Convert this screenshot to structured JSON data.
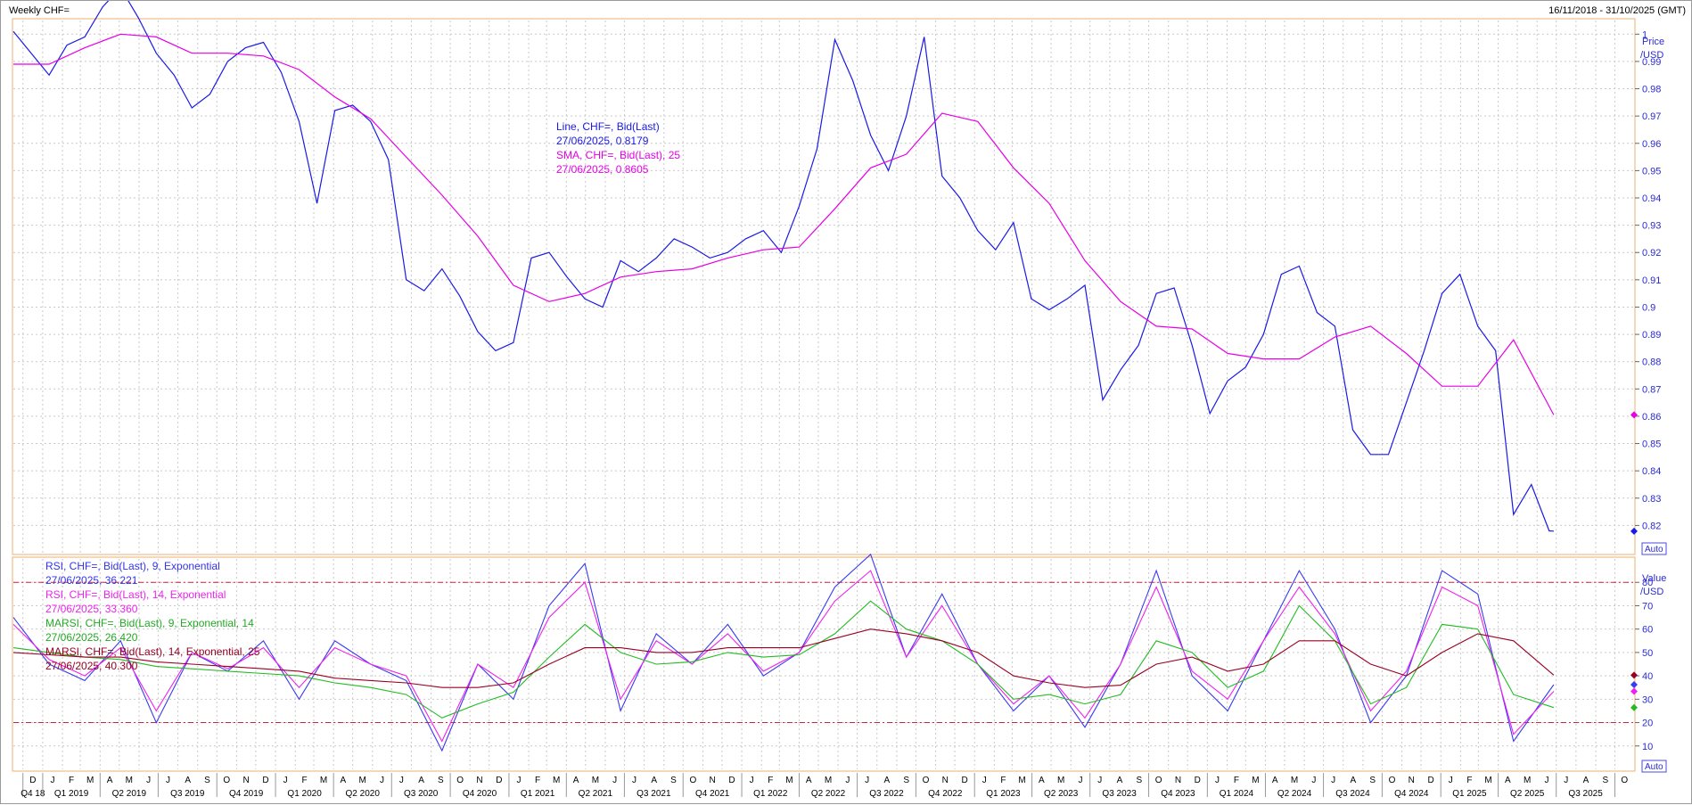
{
  "window": {
    "title": "Weekly CHF=",
    "date_range": "16/11/2018 - 31/10/2025 (GMT)"
  },
  "price_axis": {
    "unit_line1": "Price",
    "unit_line2": "/USD",
    "auto_label": "Auto"
  },
  "value_axis": {
    "unit_line1": "Value",
    "unit_line2": "/USD",
    "auto_label": "Auto"
  },
  "price_legend": [
    {
      "label": "Line, CHF=, Bid(Last)",
      "value": "27/06/2025, 0.8179",
      "color": "#1a1ae6"
    },
    {
      "label": "SMA, CHF=, Bid(Last),  25",
      "value": "27/06/2025, 0.8605",
      "color": "#e600e6"
    }
  ],
  "indicator_legend": [
    {
      "label": "RSI, CHF=, Bid(Last),  9, Exponential",
      "value": "27/06/2025, 36.221",
      "color": "#3333ee"
    },
    {
      "label": "RSI, CHF=, Bid(Last),  14, Exponential",
      "value": "27/06/2025, 33.360",
      "color": "#ee22ee"
    },
    {
      "label": "MARSI, CHF=, Bid(Last),  9, Exponential, 14",
      "value": "27/06/2025, 26.420",
      "color": "#22bb22"
    },
    {
      "label": "MARSI, CHF=, Bid(Last),  14, Exponential, 25",
      "value": "27/06/2025, 40.300",
      "color": "#990022"
    }
  ],
  "colors": {
    "price_line": "#1a1ae6",
    "sma": "#e600e6",
    "rsi9": "#3a3aee",
    "rsi14": "#ee22ee",
    "marsi9": "#22bb22",
    "marsi14": "#990022",
    "ref_line": "#cc2244",
    "grid": "#c9c9c9",
    "panel_border": "#e8b070"
  },
  "month_labels": [
    "D",
    "J",
    "F",
    "M",
    "A",
    "M",
    "J",
    "J",
    "A",
    "S",
    "O",
    "N",
    "D",
    "J",
    "F",
    "M",
    "A",
    "M",
    "J",
    "J",
    "A",
    "S",
    "O",
    "N",
    "D",
    "J",
    "F",
    "M",
    "A",
    "M",
    "J",
    "J",
    "A",
    "S",
    "O",
    "N",
    "D",
    "J",
    "F",
    "M",
    "A",
    "M",
    "J",
    "J",
    "A",
    "S",
    "O",
    "N",
    "D",
    "J",
    "F",
    "M",
    "A",
    "M",
    "J",
    "J",
    "A",
    "S",
    "O",
    "N",
    "D",
    "J",
    "F",
    "M",
    "A",
    "M",
    "J",
    "J",
    "A",
    "S",
    "O",
    "N",
    "D",
    "J",
    "F",
    "M",
    "A",
    "M",
    "J",
    "J",
    "A",
    "S",
    "O",
    "N",
    "D",
    "J",
    "F",
    "M",
    "A",
    "M",
    "J",
    "J",
    "A",
    "S",
    "O"
  ],
  "quarter_labels": [
    "Q4 18",
    "Q1 2019",
    "Q2 2019",
    "Q3 2019",
    "Q4 2019",
    "Q1 2020",
    "Q2 2020",
    "Q3 2020",
    "Q4 2020",
    "Q1 2021",
    "Q2 2021",
    "Q3 2021",
    "Q4 2021",
    "Q1 2022",
    "Q2 2022",
    "Q3 2022",
    "Q4 2022",
    "Q1 2023",
    "Q2 2023",
    "Q3 2023",
    "Q4 2023",
    "Q1 2024",
    "Q2 2024",
    "Q3 2024",
    "Q4 2024",
    "Q1 2025",
    "Q2 2025",
    "Q3 2025"
  ],
  "chart_data": [
    {
      "type": "line",
      "title": "Weekly CHF=",
      "x_range": [
        "2018-11-16",
        "2025-10-31"
      ],
      "ylabel": "Price /USD",
      "ylim": [
        0.81,
        1.005
      ],
      "y_ticks": [
        0.82,
        0.83,
        0.84,
        0.85,
        0.86,
        0.87,
        0.88,
        0.89,
        0.9,
        0.91,
        0.92,
        0.93,
        0.94,
        0.95,
        0.96,
        0.97,
        0.98,
        0.99,
        1
      ],
      "y_tick_labels": [
        "0.82",
        "0.83",
        "0.84",
        "0.85",
        "0.86",
        "0.87",
        "0.88",
        "0.89",
        "0.9",
        "0.91",
        "0.92",
        "0.93",
        "0.94",
        "0.95",
        "0.96",
        "0.97",
        "0.98",
        "0.99",
        "1"
      ],
      "last_value_markers": [
        {
          "series": "SMA",
          "value": 0.8605,
          "color": "#e600e6"
        },
        {
          "series": "Line",
          "value": 0.8179,
          "color": "#1a1ae6"
        }
      ],
      "grid": true,
      "series": [
        {
          "name": "Line, CHF=, Bid(Last)",
          "x": [
            "2018-11-16",
            "2018-12-14",
            "2019-01-11",
            "2019-02-08",
            "2019-03-08",
            "2019-04-05",
            "2019-05-03",
            "2019-05-31",
            "2019-06-28",
            "2019-07-26",
            "2019-08-23",
            "2019-09-20",
            "2019-10-18",
            "2019-11-15",
            "2019-12-13",
            "2020-01-10",
            "2020-02-07",
            "2020-03-06",
            "2020-04-03",
            "2020-05-01",
            "2020-05-29",
            "2020-06-26",
            "2020-07-24",
            "2020-08-21",
            "2020-09-18",
            "2020-10-16",
            "2020-11-13",
            "2020-12-11",
            "2021-01-08",
            "2021-02-05",
            "2021-03-05",
            "2021-04-02",
            "2021-04-30",
            "2021-05-28",
            "2021-06-25",
            "2021-07-23",
            "2021-08-20",
            "2021-09-17",
            "2021-10-15",
            "2021-11-12",
            "2021-12-10",
            "2022-01-07",
            "2022-02-04",
            "2022-03-04",
            "2022-04-01",
            "2022-04-29",
            "2022-05-27",
            "2022-06-24",
            "2022-07-22",
            "2022-08-19",
            "2022-09-16",
            "2022-10-14",
            "2022-11-11",
            "2022-12-09",
            "2023-01-06",
            "2023-02-03",
            "2023-03-03",
            "2023-03-31",
            "2023-04-28",
            "2023-05-26",
            "2023-06-23",
            "2023-07-21",
            "2023-08-18",
            "2023-09-15",
            "2023-10-13",
            "2023-11-10",
            "2023-12-08",
            "2024-01-05",
            "2024-02-02",
            "2024-03-01",
            "2024-03-29",
            "2024-04-26",
            "2024-05-24",
            "2024-06-21",
            "2024-07-19",
            "2024-08-16",
            "2024-09-13",
            "2024-10-11",
            "2024-11-08",
            "2024-12-06",
            "2025-01-03",
            "2025-01-31",
            "2025-02-28",
            "2025-03-28",
            "2025-04-25",
            "2025-05-23",
            "2025-06-20",
            "2025-06-27"
          ],
          "y": [
            1.001,
            0.993,
            0.985,
            0.996,
            0.999,
            1.01,
            1.017,
            1.006,
            0.993,
            0.985,
            0.973,
            0.978,
            0.99,
            0.995,
            0.997,
            0.986,
            0.968,
            0.938,
            0.972,
            0.974,
            0.968,
            0.954,
            0.91,
            0.906,
            0.914,
            0.904,
            0.891,
            0.884,
            0.887,
            0.918,
            0.92,
            0.911,
            0.903,
            0.9,
            0.917,
            0.913,
            0.918,
            0.925,
            0.922,
            0.918,
            0.92,
            0.925,
            0.928,
            0.92,
            0.937,
            0.958,
            0.998,
            0.983,
            0.963,
            0.95,
            0.97,
            0.999,
            0.948,
            0.94,
            0.928,
            0.921,
            0.931,
            0.903,
            0.899,
            0.903,
            0.908,
            0.866,
            0.877,
            0.886,
            0.905,
            0.907,
            0.886,
            0.861,
            0.873,
            0.878,
            0.89,
            0.912,
            0.915,
            0.898,
            0.893,
            0.855,
            0.846,
            0.846,
            0.865,
            0.884,
            0.905,
            0.912,
            0.893,
            0.884,
            0.824,
            0.835,
            0.818,
            0.8179
          ]
        },
        {
          "name": "SMA, CHF=, Bid(Last),  25",
          "x": [
            "2018-11-16",
            "2019-01-11",
            "2019-03-08",
            "2019-05-03",
            "2019-06-28",
            "2019-08-23",
            "2019-10-18",
            "2019-12-13",
            "2020-02-07",
            "2020-04-03",
            "2020-05-29",
            "2020-07-24",
            "2020-09-18",
            "2020-11-13",
            "2021-01-08",
            "2021-03-05",
            "2021-04-30",
            "2021-06-25",
            "2021-08-20",
            "2021-10-15",
            "2021-12-10",
            "2022-02-04",
            "2022-04-01",
            "2022-05-27",
            "2022-07-22",
            "2022-09-16",
            "2022-11-11",
            "2023-01-06",
            "2023-03-03",
            "2023-04-28",
            "2023-06-23",
            "2023-08-18",
            "2023-10-13",
            "2023-12-08",
            "2024-02-02",
            "2024-03-29",
            "2024-05-24",
            "2024-07-19",
            "2024-09-13",
            "2024-11-08",
            "2025-01-03",
            "2025-02-28",
            "2025-04-25",
            "2025-06-27"
          ],
          "y": [
            0.989,
            0.989,
            0.995,
            1.0,
            0.999,
            0.993,
            0.993,
            0.992,
            0.987,
            0.977,
            0.969,
            0.955,
            0.941,
            0.926,
            0.908,
            0.902,
            0.905,
            0.911,
            0.913,
            0.914,
            0.918,
            0.921,
            0.922,
            0.936,
            0.951,
            0.956,
            0.971,
            0.968,
            0.951,
            0.938,
            0.917,
            0.902,
            0.893,
            0.892,
            0.883,
            0.881,
            0.881,
            0.889,
            0.893,
            0.883,
            0.871,
            0.871,
            0.888,
            0.8605
          ]
        }
      ]
    },
    {
      "type": "line",
      "ylabel": "Value /USD",
      "ylim": [
        0,
        90
      ],
      "y_ticks": [
        10,
        20,
        30,
        40,
        50,
        60,
        70,
        80
      ],
      "y_tick_labels": [
        "10",
        "20",
        "30",
        "40",
        "50",
        "60",
        "70",
        "80"
      ],
      "reference_lines": [
        20,
        80
      ],
      "last_value_markers": [
        {
          "series": "MARSI 14",
          "value": 40.3,
          "color": "#990022"
        },
        {
          "series": "RSI 9",
          "value": 36.221,
          "color": "#3a3aee"
        },
        {
          "series": "RSI 14",
          "value": 33.36,
          "color": "#ee22ee"
        },
        {
          "series": "MARSI 9",
          "value": 26.42,
          "color": "#22bb22"
        }
      ],
      "grid": true,
      "x": [
        "2018-11-16",
        "2019-01-11",
        "2019-03-08",
        "2019-05-03",
        "2019-06-28",
        "2019-08-23",
        "2019-10-18",
        "2019-12-13",
        "2020-02-07",
        "2020-04-03",
        "2020-05-29",
        "2020-07-24",
        "2020-09-18",
        "2020-11-13",
        "2021-01-08",
        "2021-03-05",
        "2021-04-30",
        "2021-06-25",
        "2021-08-20",
        "2021-10-15",
        "2021-12-10",
        "2022-02-04",
        "2022-04-01",
        "2022-05-27",
        "2022-07-22",
        "2022-09-16",
        "2022-11-11",
        "2023-01-06",
        "2023-03-03",
        "2023-04-28",
        "2023-06-23",
        "2023-08-18",
        "2023-10-13",
        "2023-12-08",
        "2024-02-02",
        "2024-03-29",
        "2024-05-24",
        "2024-07-19",
        "2024-09-13",
        "2024-11-08",
        "2025-01-03",
        "2025-02-28",
        "2025-04-25",
        "2025-06-27"
      ],
      "series": [
        {
          "name": "RSI, CHF=, Bid(Last),  9, Exponential",
          "values": [
            65,
            45,
            38,
            55,
            20,
            50,
            42,
            55,
            30,
            55,
            45,
            38,
            8,
            45,
            30,
            70,
            88,
            25,
            58,
            45,
            62,
            40,
            50,
            78,
            92,
            48,
            75,
            45,
            25,
            40,
            18,
            45,
            85,
            40,
            25,
            55,
            85,
            60,
            20,
            40,
            85,
            75,
            12,
            36.221
          ]
        },
        {
          "name": "RSI, CHF=, Bid(Last),  14, Exponential",
          "values": [
            62,
            47,
            40,
            52,
            25,
            50,
            43,
            52,
            35,
            52,
            45,
            40,
            12,
            45,
            35,
            65,
            80,
            30,
            55,
            45,
            58,
            42,
            50,
            72,
            85,
            48,
            70,
            45,
            28,
            40,
            22,
            45,
            78,
            42,
            30,
            55,
            78,
            58,
            25,
            42,
            78,
            70,
            15,
            33.36
          ]
        },
        {
          "name": "MARSI, CHF=, Bid(Last),  9, Exponential, 14",
          "values": [
            52,
            50,
            48,
            47,
            44,
            43,
            42,
            41,
            40,
            37,
            35,
            32,
            22,
            28,
            33,
            48,
            62,
            50,
            45,
            46,
            50,
            48,
            49,
            58,
            72,
            60,
            55,
            45,
            30,
            32,
            28,
            32,
            55,
            50,
            35,
            42,
            70,
            55,
            28,
            35,
            62,
            60,
            32,
            26.42
          ]
        },
        {
          "name": "MARSI, CHF=, Bid(Last),  14, Exponential, 25",
          "values": [
            50,
            49,
            48,
            48,
            46,
            45,
            44,
            43,
            42,
            39,
            38,
            37,
            35,
            35,
            37,
            45,
            52,
            52,
            50,
            50,
            52,
            52,
            52,
            56,
            60,
            58,
            55,
            50,
            40,
            37,
            35,
            36,
            45,
            48,
            42,
            45,
            55,
            55,
            45,
            40,
            50,
            58,
            55,
            40.3
          ]
        }
      ]
    }
  ]
}
